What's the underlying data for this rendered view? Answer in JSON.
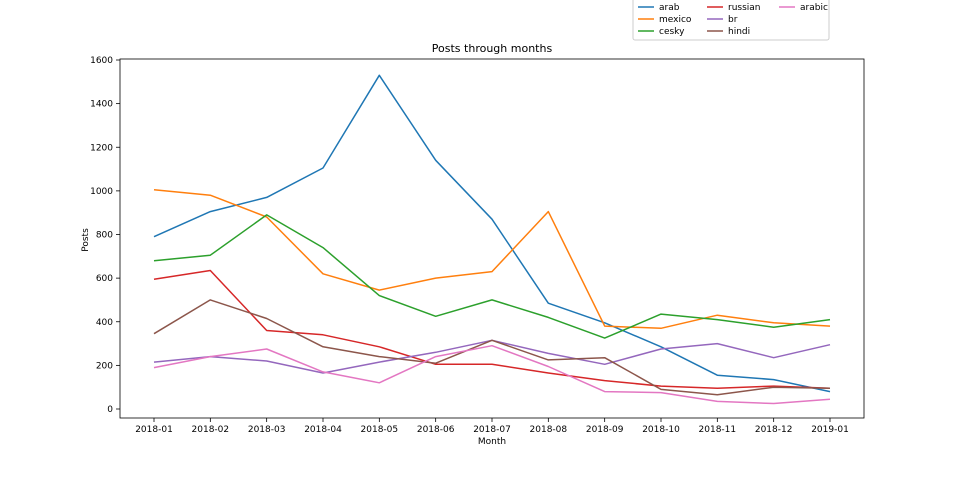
{
  "chart_data": {
    "type": "line",
    "title": "Posts through months",
    "xlabel": "Month",
    "ylabel": "Posts",
    "ylim": [
      -50,
      1600
    ],
    "yticks": [
      0,
      200,
      400,
      600,
      800,
      1000,
      1200,
      1400,
      1600
    ],
    "grid": false,
    "legend_position": "top-right, above plot",
    "categories": [
      "2018-01",
      "2018-02",
      "2018-03",
      "2018-04",
      "2018-05",
      "2018-06",
      "2018-07",
      "2018-08",
      "2018-09",
      "2018-10",
      "2018-11",
      "2018-12",
      "2019-01"
    ],
    "series": [
      {
        "name": "arab",
        "color": "#1f77b4",
        "values": [
          790,
          905,
          970,
          1105,
          1530,
          1140,
          870,
          485,
          395,
          285,
          155,
          135,
          80
        ]
      },
      {
        "name": "mexico",
        "color": "#ff7f0e",
        "values": [
          1005,
          980,
          880,
          620,
          545,
          600,
          630,
          905,
          380,
          370,
          430,
          395,
          380
        ]
      },
      {
        "name": "cesky",
        "color": "#2ca02c",
        "values": [
          680,
          705,
          890,
          740,
          520,
          425,
          500,
          420,
          325,
          435,
          410,
          375,
          410
        ]
      },
      {
        "name": "russian",
        "color": "#d62728",
        "values": [
          595,
          635,
          360,
          340,
          285,
          205,
          205,
          165,
          130,
          105,
          95,
          105,
          95
        ]
      },
      {
        "name": "br",
        "color": "#9467bd",
        "values": [
          215,
          240,
          220,
          165,
          215,
          260,
          315,
          255,
          205,
          275,
          300,
          235,
          295
        ]
      },
      {
        "name": "hindi",
        "color": "#8c564b",
        "values": [
          345,
          500,
          415,
          285,
          240,
          210,
          315,
          225,
          235,
          90,
          65,
          100,
          95
        ]
      },
      {
        "name": "arabic",
        "color": "#e377c2",
        "values": [
          190,
          240,
          275,
          170,
          120,
          240,
          290,
          195,
          80,
          75,
          35,
          25,
          45
        ]
      }
    ]
  }
}
